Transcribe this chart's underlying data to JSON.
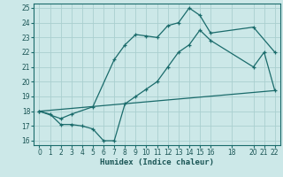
{
  "xlabel": "Humidex (Indice chaleur)",
  "bg_color": "#cce8e8",
  "grid_color": "#aacfcf",
  "line_color": "#1a6b6b",
  "xlim": [
    -0.5,
    22.5
  ],
  "ylim": [
    15.7,
    25.3
  ],
  "xticks": [
    0,
    1,
    2,
    3,
    4,
    5,
    6,
    7,
    8,
    9,
    10,
    11,
    12,
    13,
    14,
    15,
    16,
    18,
    20,
    21,
    22
  ],
  "yticks": [
    16,
    17,
    18,
    19,
    20,
    21,
    22,
    23,
    24,
    25
  ],
  "line1_x": [
    0,
    1,
    2,
    3,
    4,
    5,
    6,
    7,
    8,
    9,
    10,
    11,
    12,
    13,
    14,
    15,
    16,
    20,
    21,
    22
  ],
  "line1_y": [
    18,
    17.8,
    17.1,
    17.1,
    17.0,
    16.8,
    16.0,
    16.0,
    18.5,
    19.0,
    19.5,
    20.0,
    21.0,
    22.0,
    22.5,
    23.5,
    22.8,
    21.0,
    22.0,
    19.4
  ],
  "line2_x": [
    0,
    2,
    3,
    5,
    7,
    8,
    9,
    10,
    11,
    12,
    13,
    14,
    15,
    16,
    20,
    22
  ],
  "line2_y": [
    18,
    17.5,
    17.8,
    18.3,
    21.5,
    22.5,
    23.2,
    23.1,
    23.0,
    23.8,
    24.0,
    25.0,
    24.5,
    23.3,
    23.7,
    22.0
  ],
  "line3_x": [
    0,
    22
  ],
  "line3_y": [
    18,
    19.4
  ]
}
